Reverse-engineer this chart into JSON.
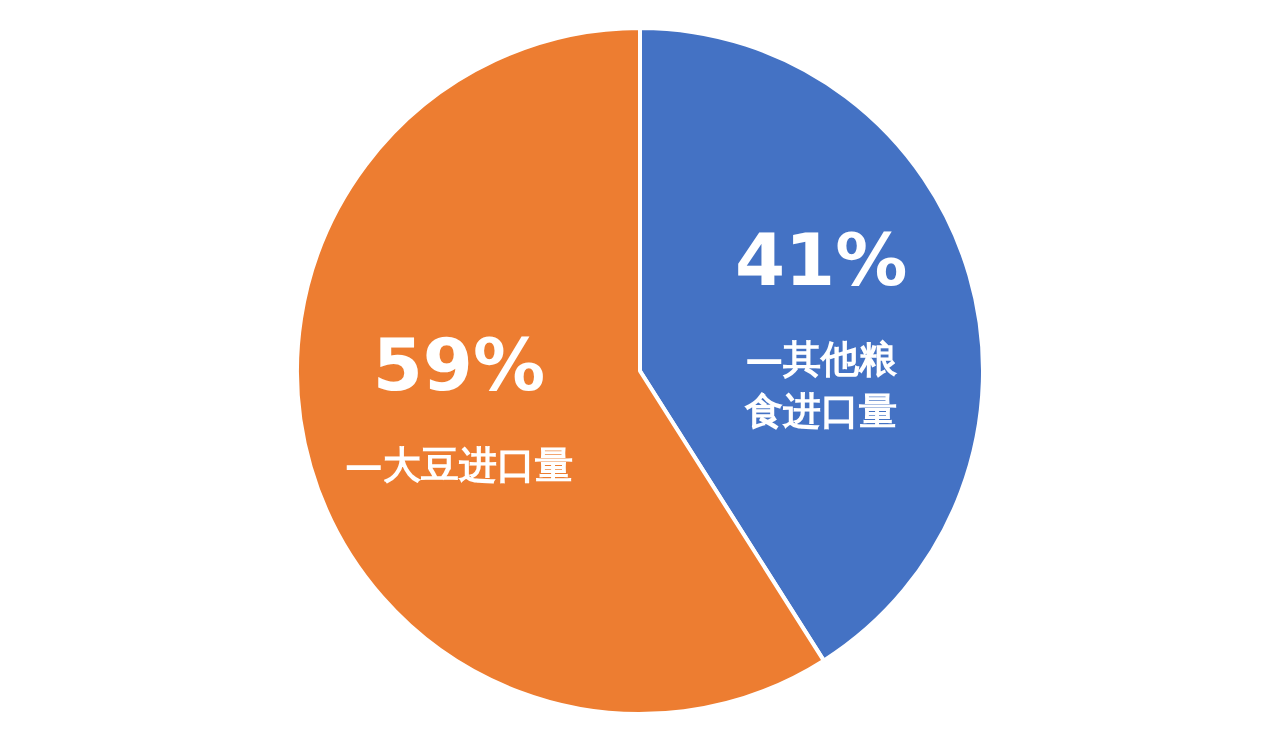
{
  "chart_data": {
    "type": "pie",
    "categories": [
      "—其他粮食进口量",
      "—大豆进口量"
    ],
    "values": [
      41,
      59
    ],
    "colors": [
      "#4472c4",
      "#ed7d31"
    ],
    "value_labels": [
      "41%",
      "59%"
    ],
    "legend": false
  }
}
